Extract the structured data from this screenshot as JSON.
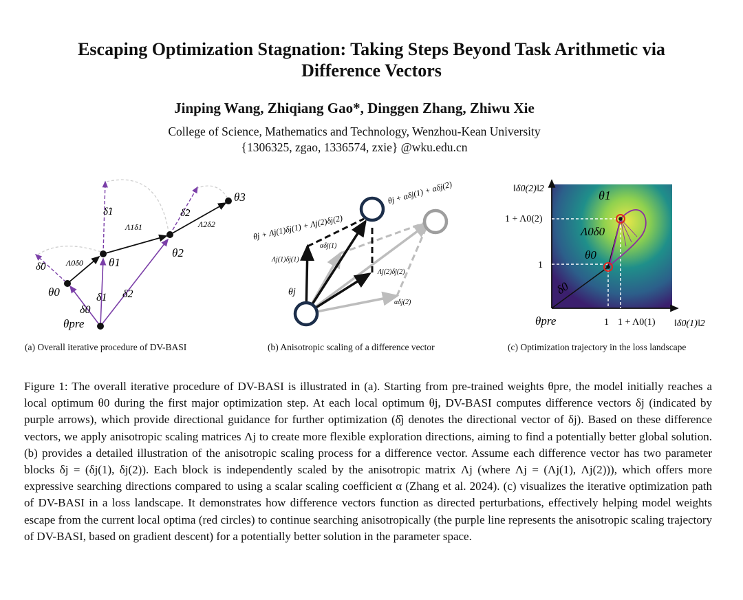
{
  "paper": {
    "title_line1": "Escaping Optimization Stagnation: Taking Steps Beyond Task Arithmetic via",
    "title_line2": "Difference Vectors",
    "authors": "Jinping Wang, Zhiqiang Gao*, Dinggen Zhang, Zhiwu Xie",
    "affiliation": "College of Science, Mathematics and Technology, Wenzhou-Kean University",
    "emails": "{1306325, zgao, 1336574, zxie} @wku.edu.cn"
  },
  "figure": {
    "panel_a": {
      "caption": "(a) Overall iterative procedure of DV-BASI",
      "labels": {
        "theta_pre": "θpre",
        "theta0": "θ0",
        "theta1": "θ1",
        "theta2": "θ2",
        "theta3": "θ3",
        "delta0": "δ0",
        "delta1": "δ1",
        "delta2": "δ2",
        "dhat0": "δ̂0",
        "dhat1": "δ̂1",
        "dhat2": "δ̂2",
        "L0d0": "Λ0δ0",
        "L1d1": "Λ1δ1",
        "L2d2": "Λ2δ2"
      }
    },
    "panel_b": {
      "caption": "(b) Anisotropic scaling of a difference vector",
      "labels": {
        "theta_j": "θj",
        "aniso_target": "θj + Λj(1)δj(1) + Λj(2)δj(2)",
        "scalar_target": "θj + αδj(1) + αδj(2)",
        "L1d1": "Λj(1)δj(1)",
        "L2d2": "Λj(2)δj(2)",
        "ad1": "αδj(1)",
        "ad2": "αδj(2)"
      }
    },
    "panel_c": {
      "caption": "(c) Optimization trajectory in the loss landscape",
      "labels": {
        "y_axis": "‖δ0(2)‖2",
        "x_axis": "‖δ0(1)‖2",
        "origin": "θpre",
        "y_tick_top": "1 + Λ0(2)",
        "y_tick_low": "1",
        "x_tick_left": "1",
        "x_tick_right": "1 + Λ0(1)",
        "theta1": "θ1",
        "theta0": "θ0",
        "L0d0": "Λ0δ0",
        "delta0": "δ0"
      },
      "colors": {
        "landscape_low": "#3b1f6e",
        "landscape_mid": "#1f8f8a",
        "landscape_high": "#e8e64a",
        "trajectory": "#8b2fa0",
        "optimum_circle": "#e0281f"
      }
    },
    "colors": {
      "difference_vector": "#7b3fa8",
      "arrow": "#111111",
      "dashed": "#bdbdbd",
      "node": "#1c2e4a"
    }
  },
  "caption_text": [
    "Figure 1: The overall iterative procedure of DV-BASI is illustrated in (a). Starting from pre-trained weights θpre, the model initially reaches a local optimum θ0 during the first major optimization step. At each local optimum θj, DV-BASI computes difference vectors δj (indicated by purple arrows), which provide directional guidance for further optimization (δ̂j denotes the directional vector of δj). Based on these difference vectors, we apply anisotropic scaling matrices Λj to create more flexible exploration directions, aiming to find a potentially better global solution. (b) provides a detailed illustration of the anisotropic scaling process for a difference vector. Assume each difference vector has two parameter blocks δj = (δj(1), δj(2)). Each block is independently scaled by the anisotropic matrix Λj (where Λj = (Λj(1), Λj(2))), which offers more expressive searching directions compared to using a scalar scaling coefficient α (Zhang et al. 2024). (c) visualizes the iterative optimization path of DV-BASI in a loss landscape. It demonstrates how difference vectors function as directed perturbations, effectively helping model weights escape from the current local optima (red circles) to continue searching anisotropically (the purple line represents the anisotropic scaling trajectory of DV-BASI, based on gradient descent) for a potentially better solution in the parameter space."
  ]
}
